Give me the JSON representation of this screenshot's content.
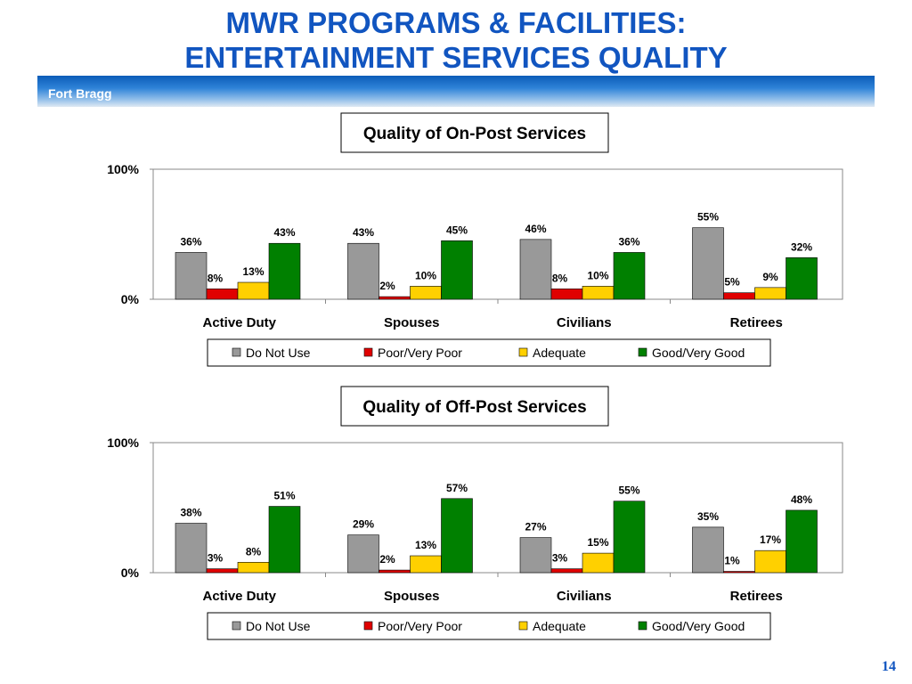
{
  "title_line1": "MWR PROGRAMS & FACILITIES:",
  "title_line2": "ENTERTAINMENT SERVICES QUALITY",
  "banner_label": "Fort Bragg",
  "page_number": "14",
  "colors": {
    "title": "#1155c0",
    "do_not_use": "#999999",
    "poor": "#e00000",
    "adequate": "#ffd000",
    "good": "#008000"
  },
  "chart_data": [
    {
      "type": "bar",
      "title": "Quality of On-Post Services",
      "categories": [
        "Active Duty",
        "Spouses",
        "Civilians",
        "Retirees"
      ],
      "ylim": [
        0,
        100
      ],
      "yticks": [
        "0%",
        "100%"
      ],
      "grid": false,
      "legend_position": "bottom",
      "series": [
        {
          "name": "Do Not Use",
          "color": "#999999",
          "values": [
            36,
            43,
            46,
            55
          ],
          "labels": [
            "36%",
            "43%",
            "46%",
            "55%"
          ]
        },
        {
          "name": "Poor/Very Poor",
          "color": "#e00000",
          "values": [
            8,
            2,
            8,
            5
          ],
          "labels": [
            "8%",
            "2%",
            "8%",
            "5%"
          ]
        },
        {
          "name": "Adequate",
          "color": "#ffd000",
          "values": [
            13,
            10,
            10,
            9
          ],
          "labels": [
            "13%",
            "10%",
            "10%",
            "9%"
          ]
        },
        {
          "name": "Good/Very Good",
          "color": "#008000",
          "values": [
            43,
            45,
            36,
            32
          ],
          "labels": [
            "43%",
            "45%",
            "36%",
            "32%"
          ]
        }
      ]
    },
    {
      "type": "bar",
      "title": "Quality of Off-Post Services",
      "categories": [
        "Active Duty",
        "Spouses",
        "Civilians",
        "Retirees"
      ],
      "ylim": [
        0,
        100
      ],
      "yticks": [
        "0%",
        "100%"
      ],
      "grid": false,
      "legend_position": "bottom",
      "series": [
        {
          "name": "Do Not Use",
          "color": "#999999",
          "values": [
            38,
            29,
            27,
            35
          ],
          "labels": [
            "38%",
            "29%",
            "27%",
            "35%"
          ]
        },
        {
          "name": "Poor/Very Poor",
          "color": "#e00000",
          "values": [
            3,
            2,
            3,
            1
          ],
          "labels": [
            "3%",
            "2%",
            "3%",
            "1%"
          ]
        },
        {
          "name": "Adequate",
          "color": "#ffd000",
          "values": [
            8,
            13,
            15,
            17
          ],
          "labels": [
            "8%",
            "13%",
            "15%",
            "17%"
          ]
        },
        {
          "name": "Good/Very Good",
          "color": "#008000",
          "values": [
            51,
            57,
            55,
            48
          ],
          "labels": [
            "51%",
            "57%",
            "55%",
            "48%"
          ]
        }
      ]
    }
  ]
}
